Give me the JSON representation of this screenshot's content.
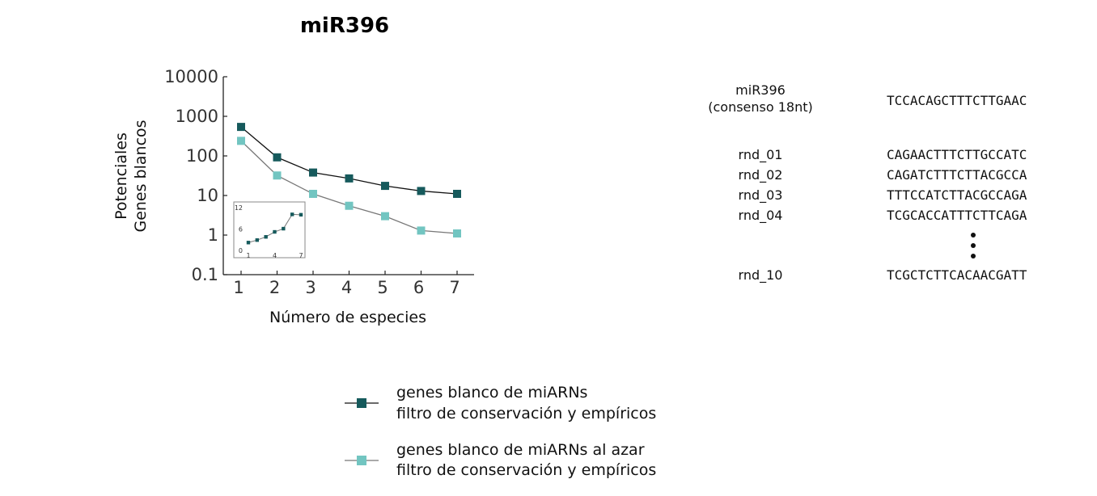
{
  "chart_data": {
    "type": "line",
    "title": "miR396",
    "ylabel_lines": [
      "Potenciales",
      "Genes blancos"
    ],
    "xlabel": "Número de especies",
    "y_scale": "log",
    "ylim": [
      0.1,
      10000
    ],
    "xlim": [
      1,
      7
    ],
    "x": [
      1,
      2,
      3,
      4,
      5,
      6,
      7
    ],
    "x_tick_labels": [
      "1",
      "2",
      "3",
      "4",
      "5",
      "6",
      "7"
    ],
    "y_ticks": [
      0.1,
      1,
      10,
      100,
      1000,
      10000
    ],
    "y_tick_labels": [
      "0.1",
      "1",
      "10",
      "100",
      "1000",
      "10000"
    ],
    "series": [
      {
        "name": "genes blanco de miARNs filtro de conservación y empíricos",
        "legend_lines": [
          "genes blanco de miARNs",
          "filtro de conservación y empíricos"
        ],
        "color": "#165a5c",
        "line_color": "#111111",
        "values": [
          540,
          92,
          38,
          27,
          17.5,
          13,
          11
        ]
      },
      {
        "name": "genes blanco de miARNs al azar filtro de conservación y empíricos",
        "legend_lines": [
          "genes blanco de miARNs al azar",
          "filtro de conservación y empíricos"
        ],
        "color": "#72c5c1",
        "line_color": "#777777",
        "values": [
          240,
          32,
          11,
          5.5,
          3,
          1.3,
          1.1
        ]
      }
    ],
    "inset": {
      "type": "line",
      "x": [
        1,
        2,
        3,
        4,
        5,
        6,
        7
      ],
      "values": [
        2.2,
        2.9,
        3.8,
        5.2,
        6.1,
        10.1,
        10.0
      ],
      "x_tick_labels": [
        "1",
        "4",
        "7"
      ],
      "y_tick_labels": [
        "0",
        "6",
        "12"
      ],
      "ylim": [
        0,
        12
      ],
      "color": "#165a5c"
    }
  },
  "sequences": {
    "consensus": {
      "label_lines": [
        "miR396",
        "(consenso 18nt)"
      ],
      "seq": "TCCACAGCTTTCTTGAAC"
    },
    "random": [
      {
        "label": "rnd_01",
        "seq": "CAGAACTTTCTTGCCATC"
      },
      {
        "label": "rnd_02",
        "seq": "CAGATCTTTCTTACGCCA"
      },
      {
        "label": "rnd_03",
        "seq": "TTTCCATCTTACGCCAGA"
      },
      {
        "label": "rnd_04",
        "seq": "TCGCACCATTTCTTCAGA"
      },
      {
        "label": "rnd_10",
        "seq": "TCGCTCTTCACAACGATT"
      }
    ]
  }
}
